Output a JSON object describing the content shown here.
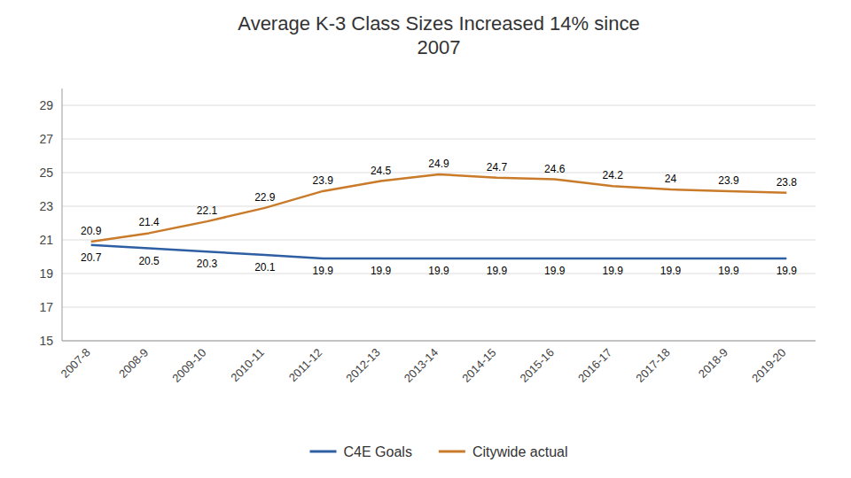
{
  "chart_data": {
    "type": "line",
    "title": "Average K-3 Class Sizes Increased 14% since\n2007",
    "categories": [
      "2007-8",
      "2008-9",
      "2009-10",
      "2010-11",
      "2011-12",
      "2012-13",
      "2013-14",
      "2014-15",
      "2015-16",
      "2016-17",
      "2017-18",
      "2018-9",
      "2019-20"
    ],
    "series": [
      {
        "name": "C4E Goals",
        "color": "#2e5fa3",
        "values": [
          20.7,
          20.5,
          20.3,
          20.1,
          19.9,
          19.9,
          19.9,
          19.9,
          19.9,
          19.9,
          19.9,
          19.9,
          19.9
        ]
      },
      {
        "name": "Citywide actual",
        "color": "#c97b2a",
        "values": [
          20.9,
          21.4,
          22.1,
          22.9,
          23.9,
          24.5,
          24.9,
          24.7,
          24.6,
          24.2,
          24.0,
          23.9,
          23.8
        ]
      }
    ],
    "ylim": [
      15,
      30
    ],
    "yticks": [
      15,
      17,
      19,
      21,
      23,
      25,
      27,
      29
    ],
    "grid": true,
    "data_labels": true,
    "legend": "bottom"
  }
}
